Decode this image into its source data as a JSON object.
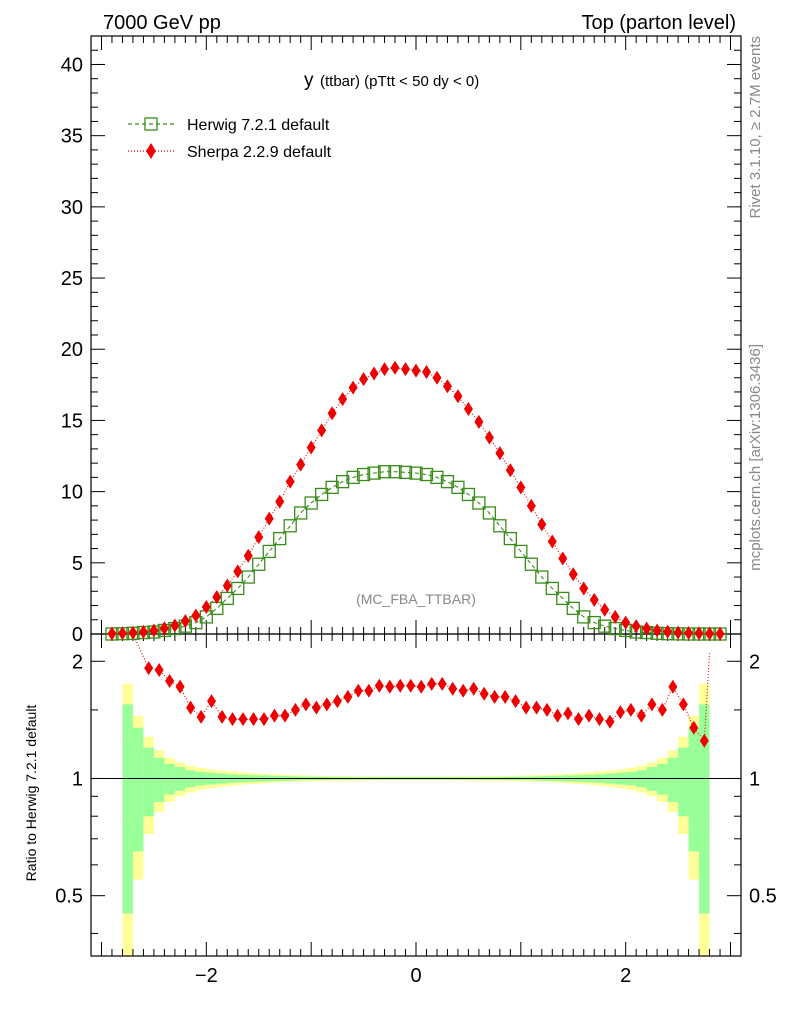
{
  "header": {
    "left": "7000 GeV pp",
    "right": "Top (parton level)"
  },
  "side_text": {
    "rivet": "Rivet 3.1.10, ≥ 2.7M events",
    "mcplots": "mcplots.cern.ch [arXiv:1306.3436]"
  },
  "colors": {
    "herwig": "#3a8c1a",
    "sherpa": "#ee0000",
    "band_inner": "#99ff99",
    "band_outer": "#ffff99"
  },
  "chart_data": [
    {
      "type": "line",
      "title_main": "y",
      "title_sub": "(ttbar) (pTtt < 50 dy < 0)",
      "watermark": "(MC_FBA_TTBAR)",
      "xlim": [
        -3.1,
        3.1
      ],
      "ylim": [
        0,
        42
      ],
      "y_ticks": [
        0,
        5,
        10,
        15,
        20,
        25,
        30,
        35,
        40
      ],
      "legend_position": "top-left",
      "x": [
        -2.9,
        -2.8,
        -2.7,
        -2.6,
        -2.5,
        -2.4,
        -2.3,
        -2.2,
        -2.1,
        -2.0,
        -1.9,
        -1.8,
        -1.7,
        -1.6,
        -1.5,
        -1.4,
        -1.3,
        -1.2,
        -1.1,
        -1.0,
        -0.9,
        -0.8,
        -0.7,
        -0.6,
        -0.5,
        -0.4,
        -0.3,
        -0.2,
        -0.1,
        0.0,
        0.1,
        0.2,
        0.3,
        0.4,
        0.5,
        0.6,
        0.7,
        0.8,
        0.9,
        1.0,
        1.1,
        1.2,
        1.3,
        1.4,
        1.5,
        1.6,
        1.7,
        1.8,
        1.9,
        2.0,
        2.1,
        2.2,
        2.3,
        2.4,
        2.5,
        2.6,
        2.7,
        2.8,
        2.9
      ],
      "series": [
        {
          "name": "Herwig 7.2.1 default",
          "marker": "open-square",
          "values": [
            0.0,
            0.02,
            0.05,
            0.1,
            0.14,
            0.25,
            0.38,
            0.55,
            0.8,
            1.2,
            1.8,
            2.5,
            3.2,
            4.0,
            4.9,
            5.8,
            6.7,
            7.6,
            8.5,
            9.2,
            9.8,
            10.3,
            10.7,
            11.0,
            11.2,
            11.3,
            11.4,
            11.4,
            11.35,
            11.3,
            11.2,
            11.0,
            10.7,
            10.3,
            9.8,
            9.2,
            8.5,
            7.6,
            6.7,
            5.8,
            4.9,
            4.0,
            3.2,
            2.5,
            1.8,
            1.2,
            0.8,
            0.55,
            0.38,
            0.25,
            0.14,
            0.1,
            0.05,
            0.02,
            0.01,
            0.0,
            0.0,
            0.0,
            0.0
          ]
        },
        {
          "name": "Sherpa 2.2.9 default",
          "marker": "filled-diamond",
          "values": [
            0.03,
            0.05,
            0.09,
            0.15,
            0.25,
            0.4,
            0.6,
            0.9,
            1.3,
            1.9,
            2.6,
            3.4,
            4.4,
            5.5,
            6.8,
            8.1,
            9.3,
            10.7,
            11.9,
            13.1,
            14.3,
            15.5,
            16.5,
            17.3,
            17.9,
            18.3,
            18.6,
            18.7,
            18.6,
            18.5,
            18.4,
            18.0,
            17.4,
            16.7,
            15.8,
            14.9,
            13.8,
            12.7,
            11.5,
            10.3,
            9.0,
            7.7,
            6.5,
            5.3,
            4.2,
            3.2,
            2.4,
            1.7,
            1.2,
            0.8,
            0.55,
            0.38,
            0.25,
            0.17,
            0.1,
            0.07,
            0.05,
            0.03,
            0.02
          ]
        }
      ]
    },
    {
      "type": "line",
      "ylabel": "Ratio to Herwig 7.2.1 default",
      "xlim": [
        -3.1,
        3.1
      ],
      "ylim": [
        0.35,
        2.35
      ],
      "y_ticks": [
        0.5,
        1,
        2
      ],
      "x_ticks": [
        -2,
        0,
        2
      ],
      "reference": 1,
      "series": [
        {
          "name": "Sherpa 2.2.9 default",
          "x": [
            -2.55,
            -2.45,
            -2.35,
            -2.25,
            -2.15,
            -2.05,
            -1.95,
            -1.85,
            -1.75,
            -1.65,
            -1.55,
            -1.45,
            -1.35,
            -1.25,
            -1.15,
            -1.05,
            -0.95,
            -0.85,
            -0.75,
            -0.65,
            -0.55,
            -0.45,
            -0.35,
            -0.25,
            -0.15,
            -0.05,
            0.05,
            0.15,
            0.25,
            0.35,
            0.45,
            0.55,
            0.65,
            0.75,
            0.85,
            0.95,
            1.05,
            1.15,
            1.25,
            1.35,
            1.45,
            1.55,
            1.65,
            1.75,
            1.85,
            1.95,
            2.05,
            2.15,
            2.25,
            2.35,
            2.45,
            2.55,
            2.65,
            2.75
          ],
          "values": [
            1.92,
            1.9,
            1.78,
            1.72,
            1.52,
            1.44,
            1.58,
            1.44,
            1.42,
            1.42,
            1.42,
            1.42,
            1.45,
            1.45,
            1.5,
            1.55,
            1.52,
            1.55,
            1.58,
            1.62,
            1.68,
            1.68,
            1.73,
            1.72,
            1.73,
            1.73,
            1.72,
            1.75,
            1.75,
            1.7,
            1.68,
            1.7,
            1.65,
            1.62,
            1.62,
            1.58,
            1.52,
            1.52,
            1.5,
            1.45,
            1.47,
            1.42,
            1.45,
            1.42,
            1.4,
            1.48,
            1.5,
            1.45,
            1.55,
            1.5,
            1.72,
            1.55,
            1.35,
            1.25
          ]
        }
      ],
      "band_edges": [
        -2.8,
        -2.7,
        -2.6,
        -2.5,
        -2.4,
        -2.3,
        -2.2,
        -2.1,
        -2.0,
        -1.9,
        -1.8,
        -1.7,
        -1.6,
        -1.5,
        -1.4,
        -1.3,
        -1.2,
        -1.1,
        -1.0,
        -0.9,
        -0.8,
        -0.7,
        -0.6,
        -0.5,
        -0.4,
        -0.3,
        -0.2,
        -0.1,
        0.0,
        0.1,
        0.2,
        0.3,
        0.4,
        0.5,
        0.6,
        0.7,
        0.8,
        0.9,
        1.0,
        1.1,
        1.2,
        1.3,
        1.4,
        1.5,
        1.6,
        1.7,
        1.8,
        1.9,
        2.0,
        2.1,
        2.2,
        2.3,
        2.4,
        2.5,
        2.6,
        2.7,
        2.8
      ],
      "band_inner_halfwidth": [
        0.55,
        0.35,
        0.2,
        0.13,
        0.09,
        0.07,
        0.05,
        0.04,
        0.035,
        0.03,
        0.025,
        0.022,
        0.02,
        0.018,
        0.016,
        0.014,
        0.012,
        0.011,
        0.01,
        0.009,
        0.008,
        0.008,
        0.007,
        0.007,
        0.007,
        0.007,
        0.007,
        0.007,
        0.007,
        0.007,
        0.007,
        0.007,
        0.007,
        0.007,
        0.008,
        0.008,
        0.009,
        0.01,
        0.011,
        0.012,
        0.014,
        0.016,
        0.018,
        0.02,
        0.022,
        0.025,
        0.03,
        0.035,
        0.04,
        0.05,
        0.07,
        0.09,
        0.13,
        0.2,
        0.35,
        0.55
      ],
      "band_outer_halfwidth": [
        0.75,
        0.45,
        0.28,
        0.18,
        0.13,
        0.1,
        0.08,
        0.065,
        0.055,
        0.048,
        0.042,
        0.036,
        0.032,
        0.028,
        0.025,
        0.022,
        0.02,
        0.018,
        0.016,
        0.015,
        0.014,
        0.013,
        0.012,
        0.012,
        0.011,
        0.011,
        0.011,
        0.011,
        0.011,
        0.011,
        0.011,
        0.011,
        0.012,
        0.012,
        0.013,
        0.014,
        0.015,
        0.016,
        0.018,
        0.02,
        0.022,
        0.025,
        0.028,
        0.032,
        0.036,
        0.042,
        0.048,
        0.055,
        0.065,
        0.08,
        0.1,
        0.13,
        0.18,
        0.28,
        0.45,
        0.75
      ]
    }
  ]
}
